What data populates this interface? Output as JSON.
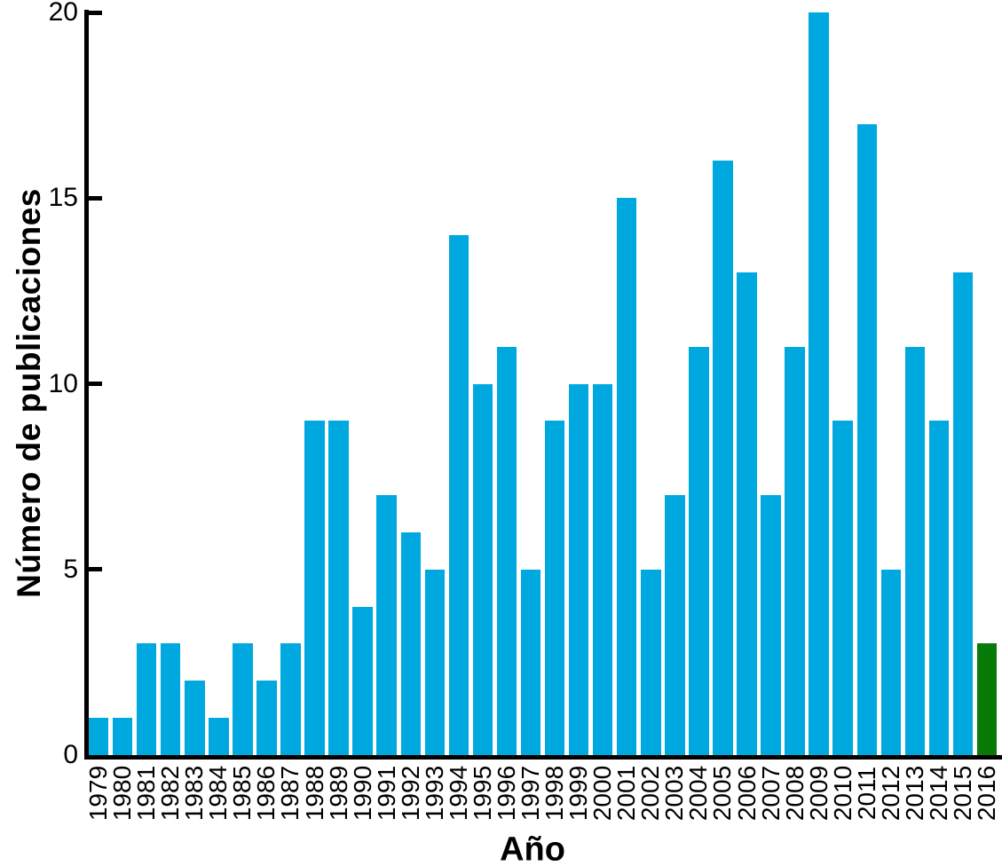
{
  "chart_data": {
    "type": "bar",
    "title": "",
    "xlabel": "Año",
    "ylabel": "Número de publicaciones",
    "categories": [
      "1979",
      "1980",
      "1981",
      "1982",
      "1983",
      "1984",
      "1985",
      "1986",
      "1987",
      "1988",
      "1989",
      "1990",
      "1991",
      "1992",
      "1993",
      "1994",
      "1995",
      "1996",
      "1997",
      "1998",
      "1999",
      "2000",
      "2001",
      "2002",
      "2003",
      "2004",
      "2005",
      "2006",
      "2007",
      "2008",
      "2009",
      "2010",
      "2011",
      "2012",
      "2013",
      "2014",
      "2015",
      "2016"
    ],
    "values": [
      1,
      1,
      3,
      3,
      2,
      1,
      3,
      2,
      3,
      9,
      9,
      4,
      7,
      6,
      5,
      14,
      10,
      11,
      5,
      9,
      10,
      10,
      15,
      5,
      7,
      11,
      16,
      13,
      7,
      11,
      20,
      9,
      17,
      5,
      11,
      9,
      13,
      3
    ],
    "ylim": [
      0,
      20
    ],
    "yticks": [
      0,
      5,
      10,
      15,
      20
    ],
    "grid": false,
    "legend": "none",
    "bar_color": "#00A8E0",
    "highlight": {
      "category": "2016",
      "color": "#087A08"
    },
    "axis_color": "#000000",
    "background_color": "#FFFFFF"
  }
}
